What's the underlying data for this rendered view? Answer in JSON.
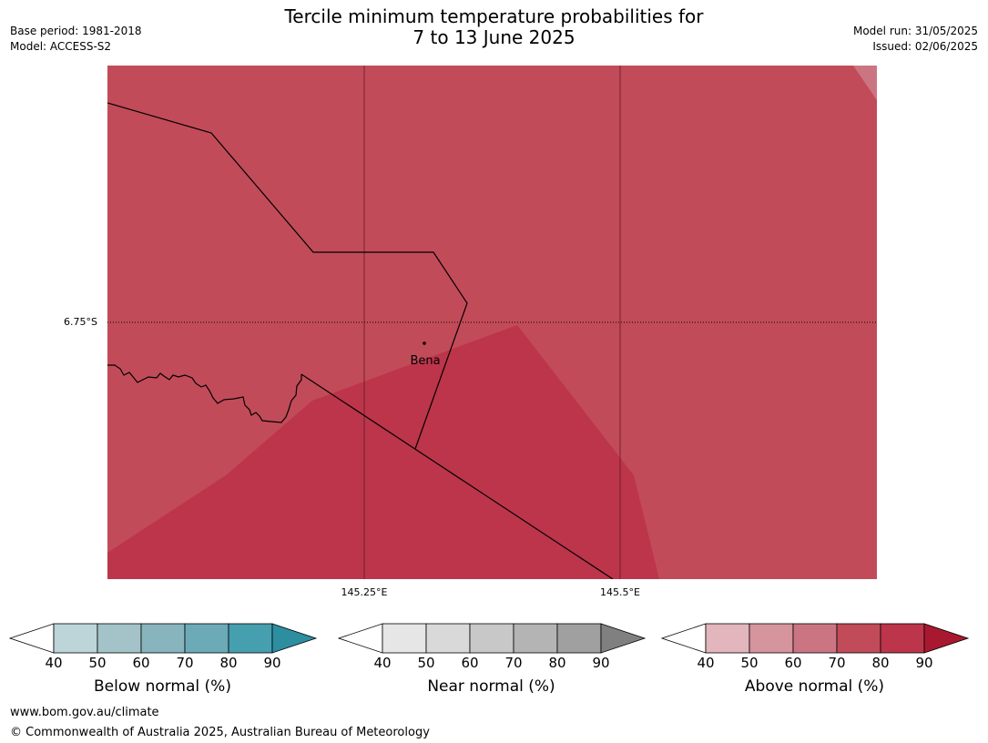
{
  "header": {
    "title_line1": "Tercile minimum temperature probabilities for",
    "title_line2": "7 to 13 June 2025",
    "base_period": "Base period: 1981-2018",
    "model": "Model: ACCESS-S2",
    "model_run": "Model run: 31/05/2025",
    "issued": "Issued: 02/06/2025"
  },
  "map": {
    "lat_label": "6.75°S",
    "lon_labels": [
      "145.25°E",
      "145.5°E"
    ],
    "place_label": "Bena",
    "colors": {
      "above_80_90": "#BC354B",
      "above_70_80": "#C24B59",
      "above_60_70": "#CC7582"
    }
  },
  "colorbars": [
    {
      "name": "below",
      "label": "Below normal (%)",
      "ticks": [
        "40",
        "50",
        "60",
        "70",
        "80",
        "90"
      ],
      "colors": [
        "#FFFFFF",
        "#BDD4D9",
        "#A4C3C8",
        "#88B4BE",
        "#6CAAB8",
        "#459FAE",
        "#2C8E9F"
      ]
    },
    {
      "name": "near",
      "label": "Near normal (%)",
      "ticks": [
        "40",
        "50",
        "60",
        "70",
        "80",
        "90"
      ],
      "colors": [
        "#FFFFFF",
        "#E6E6E6",
        "#D9D9D9",
        "#C8C8C8",
        "#B4B4B4",
        "#A0A0A0",
        "#808080"
      ]
    },
    {
      "name": "above",
      "label": "Above normal (%)",
      "ticks": [
        "40",
        "50",
        "60",
        "70",
        "80",
        "90"
      ],
      "colors": [
        "#FFFFFF",
        "#E2B6BC",
        "#D6949C",
        "#CC7582",
        "#C24B59",
        "#BC354B",
        "#A8192F"
      ]
    }
  ],
  "footer": {
    "url": "www.bom.gov.au/climate",
    "copyright": "© Commonwealth of Australia 2025, Australian Bureau of Meteorology"
  }
}
